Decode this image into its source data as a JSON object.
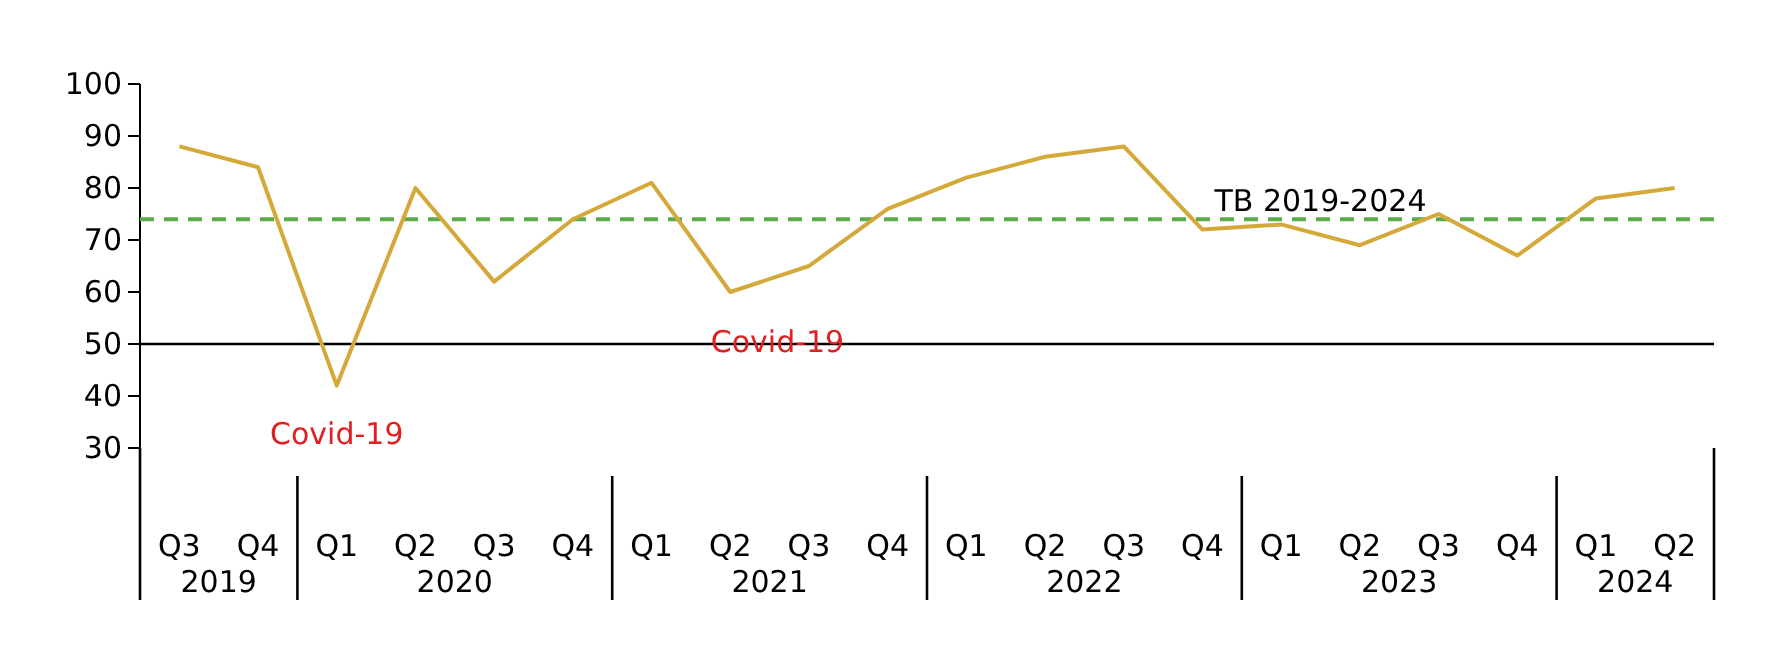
{
  "chart_data": {
    "type": "line",
    "categories": [
      "Q3",
      "Q4",
      "Q1",
      "Q2",
      "Q3",
      "Q4",
      "Q1",
      "Q2",
      "Q3",
      "Q4",
      "Q1",
      "Q2",
      "Q3",
      "Q4",
      "Q1",
      "Q2",
      "Q3",
      "Q4",
      "Q1",
      "Q2"
    ],
    "series": [
      {
        "color": "#d4a93a",
        "values": [
          88,
          84,
          42,
          80,
          62,
          74,
          81,
          60,
          65,
          76,
          82,
          86,
          88,
          72,
          73,
          69,
          75,
          67,
          78,
          80
        ]
      }
    ],
    "ylim": [
      30,
      100
    ],
    "yticks": [
      30,
      40,
      50,
      60,
      70,
      80,
      90,
      100
    ],
    "ref_lines": [
      {
        "axis": "y",
        "value": 74,
        "label": "TB 2019-2024",
        "color": "#5aab4a",
        "line_style": "dashed"
      },
      {
        "axis": "y",
        "value": 50,
        "label": null,
        "color": "#000000",
        "line_style": "solid"
      }
    ],
    "annotations": [
      "Covid-19",
      "Covid-19",
      "2019",
      "2020",
      "2021",
      "2022",
      "2023",
      "2024"
    ],
    "grid": false,
    "marker": "none",
    "line_style": "solid"
  }
}
